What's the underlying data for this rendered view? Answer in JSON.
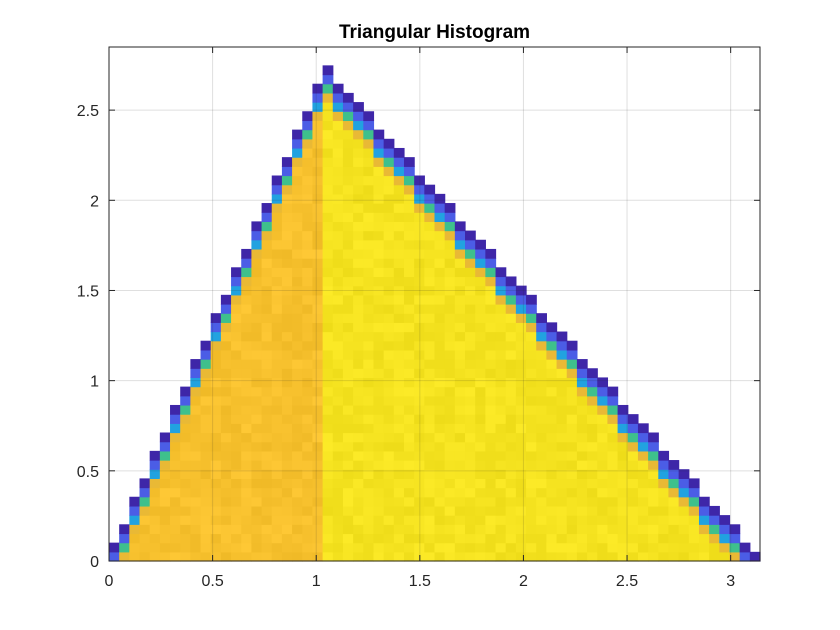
{
  "chart_data": {
    "type": "heatmap",
    "title": "Triangular Histogram",
    "xlabel": "",
    "ylabel": "",
    "xlim": [
      0,
      3.1416
    ],
    "ylim": [
      0,
      2.85
    ],
    "x_ticks": [
      "0",
      "0.5",
      "1",
      "1.5",
      "2",
      "2.5",
      "3"
    ],
    "x_tick_values": [
      0,
      0.5,
      1,
      1.5,
      2,
      2.5,
      3
    ],
    "y_ticks": [
      "0",
      "0.5",
      "1",
      "1.5",
      "2",
      "2.5"
    ],
    "y_tick_values": [
      0,
      0.5,
      1,
      1.5,
      2,
      2.5
    ],
    "grid": true,
    "colormap": "parula",
    "triangle": {
      "vertices": [
        [
          0,
          0
        ],
        [
          1.0472,
          2.72
        ],
        [
          3.1416,
          0
        ]
      ],
      "peak_x": 1.0472,
      "peak_height": 2.72
    },
    "bins": {
      "nx": 64,
      "ny": 56
    },
    "fill_colors": {
      "left_region": "#F7C12E",
      "right_region": "#F5E320"
    },
    "edge_colors": [
      "#3E26A8",
      "#4B5DE6",
      "#21A2E0",
      "#3EC08C",
      "#E9B935"
    ]
  }
}
